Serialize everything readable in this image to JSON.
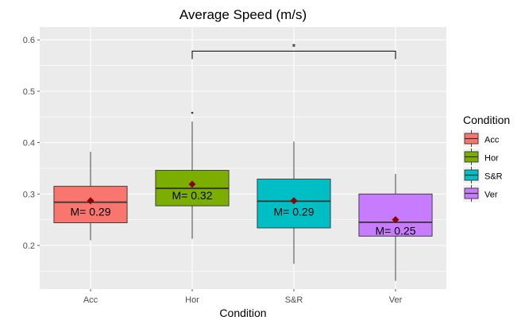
{
  "chart_data": {
    "type": "box",
    "title": "Average Speed (m/s)",
    "xlabel": "Condition",
    "ylabel": "",
    "ylim": [
      0.115,
      0.625
    ],
    "y_ticks": [
      0.2,
      0.3,
      0.4,
      0.5,
      0.6
    ],
    "y_tick_labels": [
      "0.2",
      "0.3",
      "0.4",
      "0.5",
      "0.6"
    ],
    "grid": true,
    "legend": {
      "title": "Condition",
      "placement": "right"
    },
    "categories": [
      "Acc",
      "Hor",
      "S&R",
      "Ver"
    ],
    "series": [
      {
        "name": "Acc",
        "color": "#F8766D",
        "min": 0.21,
        "q1": 0.244,
        "median": 0.284,
        "q3": 0.315,
        "max": 0.382,
        "mean": 0.287,
        "mean_label": "M= 0.29",
        "outliers": []
      },
      {
        "name": "Hor",
        "color": "#7CAE00",
        "min": 0.213,
        "q1": 0.277,
        "median": 0.311,
        "q3": 0.346,
        "max": 0.441,
        "mean": 0.319,
        "mean_label": "M= 0.32",
        "outliers": [
          0.458
        ]
      },
      {
        "name": "S&R",
        "color": "#00BFC4",
        "min": 0.164,
        "q1": 0.234,
        "median": 0.286,
        "q3": 0.329,
        "max": 0.402,
        "mean": 0.287,
        "mean_label": "M= 0.29",
        "outliers": []
      },
      {
        "name": "Ver",
        "color": "#C77CFF",
        "min": 0.131,
        "q1": 0.218,
        "median": 0.245,
        "q3": 0.3,
        "max": 0.339,
        "mean": 0.25,
        "mean_label": "M= 0.25",
        "outliers": []
      }
    ],
    "mean_marker_color": "#8B0000",
    "annotation": {
      "label": "*",
      "from": "Hor",
      "to": "Ver",
      "y": 0.578
    }
  }
}
